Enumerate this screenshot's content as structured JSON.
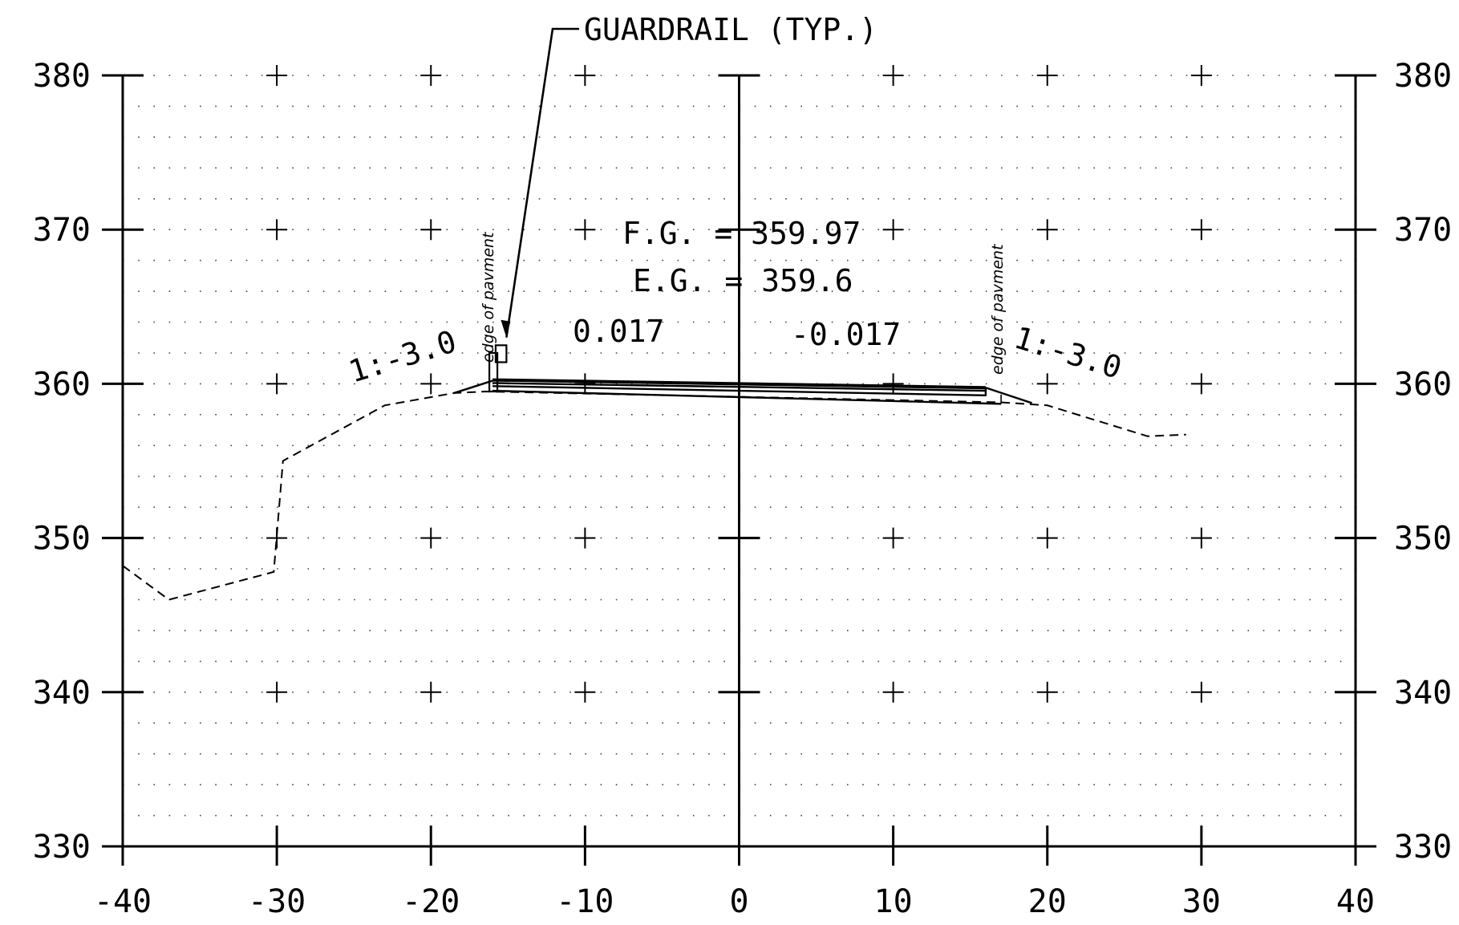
{
  "chart_data": {
    "type": "cross-section",
    "title": "",
    "x_axis": {
      "range": [
        -40,
        40
      ],
      "ticks": [
        -40,
        -30,
        -20,
        -10,
        0,
        10,
        20,
        30,
        40
      ],
      "tick_labels": [
        "-40",
        "-30",
        "-20",
        "-10",
        "0",
        "10",
        "20",
        "30",
        "40"
      ]
    },
    "y_axis": {
      "range": [
        330,
        380
      ],
      "ticks": [
        330,
        340,
        350,
        360,
        370,
        380
      ],
      "tick_labels": [
        "330",
        "340",
        "350",
        "360",
        "370",
        "380"
      ]
    },
    "grid": "dotted, with crosshair marks at 10 x 10 intersections",
    "existing_ground": {
      "style": "dashed",
      "points": [
        [
          -40,
          348.2
        ],
        [
          -37.0,
          346.0
        ],
        [
          -30.2,
          347.8
        ],
        [
          -29.6,
          355.0
        ],
        [
          -23.0,
          358.6
        ],
        [
          -18.5,
          359.4
        ],
        [
          -16.4,
          359.5
        ],
        [
          17.0,
          358.8
        ],
        [
          20.0,
          358.6
        ],
        [
          26.5,
          356.6
        ],
        [
          29.0,
          356.7
        ]
      ]
    },
    "finished_grade": {
      "style": "solid",
      "lines": [
        [
          [
            -16.0,
            360.25
          ],
          [
            16.0,
            359.75
          ]
        ],
        [
          [
            -16.0,
            360.05
          ],
          [
            16.0,
            359.55
          ]
        ],
        [
          [
            -16.0,
            359.85
          ],
          [
            16.0,
            359.25
          ]
        ],
        [
          [
            -16.0,
            359.55
          ],
          [
            17.0,
            358.7
          ]
        ]
      ],
      "left_slope": [
        [
          -18.5,
          359.4
        ],
        [
          -16.0,
          360.2
        ]
      ],
      "right_slope": [
        [
          16.0,
          359.75
        ],
        [
          19.0,
          358.75
        ]
      ]
    },
    "guardrail": {
      "label": "GUARDRAIL  (TYP.)",
      "post_x": -16.0,
      "post_bottom": 359.5,
      "post_top": 362.0,
      "block_x_range": [
        -15.8,
        -15.1
      ],
      "block_y_range": [
        361.4,
        362.5
      ]
    },
    "annotations": {
      "fg": "F.G.  = 359.97",
      "eg": "E.G.  = 359.6",
      "cross_slope_left": "0.017",
      "cross_slope_right": "-0.017",
      "side_slope_left": "1:-3.0",
      "side_slope_right": "1:-3.0",
      "edge_left": "edge of pavment",
      "edge_right": "edge of pavment"
    }
  }
}
